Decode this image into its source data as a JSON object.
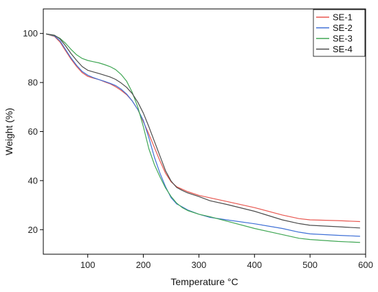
{
  "chart_data": {
    "type": "line",
    "title": "",
    "xlabel": "Temperature °C",
    "ylabel": "Weight (%)",
    "xlim": [
      20,
      600
    ],
    "ylim": [
      10,
      110
    ],
    "xticks": [
      100,
      200,
      300,
      400,
      500,
      600
    ],
    "yticks": [
      20,
      40,
      60,
      80,
      100
    ],
    "grid": false,
    "legend_position": "top-right",
    "series": [
      {
        "name": "SE-1",
        "color": "#e8554e",
        "x": [
          25,
          40,
          50,
          60,
          70,
          80,
          90,
          100,
          110,
          120,
          130,
          140,
          150,
          160,
          170,
          180,
          190,
          200,
          210,
          220,
          230,
          240,
          250,
          260,
          270,
          280,
          300,
          320,
          350,
          400,
          450,
          480,
          500,
          550,
          590
        ],
        "y": [
          99.8,
          98.8,
          96.5,
          93,
          89.5,
          86.5,
          84,
          82.5,
          81.8,
          81.2,
          80.3,
          79.5,
          78.3,
          76.8,
          75,
          72.5,
          69,
          64,
          59,
          53.5,
          48,
          43,
          39.5,
          37.5,
          36.5,
          35.5,
          34,
          33,
          31.5,
          29,
          26,
          24.5,
          24,
          23.7,
          23.3
        ]
      },
      {
        "name": "SE-2",
        "color": "#3d6fd6",
        "x": [
          25,
          40,
          50,
          60,
          70,
          80,
          90,
          100,
          110,
          120,
          130,
          140,
          150,
          160,
          170,
          180,
          190,
          200,
          210,
          220,
          230,
          240,
          250,
          260,
          270,
          280,
          300,
          320,
          350,
          400,
          450,
          480,
          500,
          550,
          590
        ],
        "y": [
          99.8,
          99,
          97,
          93.5,
          90,
          87,
          84.5,
          83,
          82,
          81.2,
          80.5,
          79.7,
          78.8,
          77.3,
          75.3,
          72.5,
          69,
          64.5,
          57.5,
          49.5,
          43,
          37.5,
          33,
          30.5,
          29.3,
          28,
          26.3,
          25,
          24,
          22.4,
          20.5,
          19,
          18.3,
          17.7,
          17.3
        ]
      },
      {
        "name": "SE-3",
        "color": "#3fa653",
        "x": [
          25,
          40,
          50,
          60,
          70,
          80,
          90,
          100,
          110,
          120,
          130,
          140,
          150,
          160,
          170,
          180,
          190,
          200,
          210,
          220,
          230,
          240,
          250,
          260,
          270,
          280,
          300,
          320,
          350,
          400,
          450,
          480,
          500,
          550,
          590
        ],
        "y": [
          99.8,
          99.2,
          98,
          96,
          93.5,
          91.3,
          89.8,
          89,
          88.5,
          88,
          87.3,
          86.5,
          85.3,
          83.3,
          80.5,
          76,
          70,
          62,
          53,
          46.5,
          41.5,
          37,
          33.5,
          30.8,
          29,
          27.8,
          26.3,
          25.3,
          23.5,
          20.5,
          18,
          16.5,
          16,
          15.2,
          14.8
        ]
      },
      {
        "name": "SE-4",
        "color": "#4a4a4a",
        "x": [
          25,
          40,
          50,
          60,
          70,
          80,
          90,
          100,
          110,
          120,
          130,
          140,
          150,
          160,
          170,
          180,
          190,
          200,
          210,
          220,
          230,
          240,
          250,
          260,
          270,
          280,
          300,
          320,
          350,
          400,
          450,
          480,
          500,
          550,
          590
        ],
        "y": [
          99.8,
          99.3,
          97.8,
          95,
          91.8,
          89,
          86.5,
          85,
          84.3,
          83.7,
          83,
          82.3,
          81.3,
          79.8,
          78,
          75.5,
          72,
          67.5,
          62,
          56,
          50,
          44,
          39.8,
          37.2,
          36,
          35,
          33.5,
          31.8,
          30.3,
          27.5,
          24,
          22.5,
          21.8,
          21.2,
          20.7
        ]
      }
    ]
  }
}
